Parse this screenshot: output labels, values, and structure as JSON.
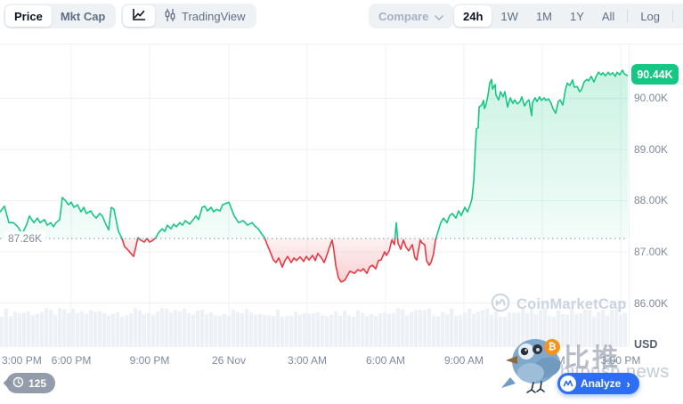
{
  "toolbar": {
    "price_label": "Price",
    "mktcap_label": "Mkt Cap",
    "tradingview_label": "TradingView",
    "compare_label": "Compare",
    "ranges": [
      "24h",
      "1W",
      "1M",
      "1Y",
      "All"
    ],
    "active_range": "24h",
    "log_label": "Log"
  },
  "chart_data": {
    "type": "area",
    "timeframe": "24h",
    "x_axis_labels": [
      "3:00 PM",
      "6:00 PM",
      "9:00 PM",
      "26 Nov",
      "3:00 AM",
      "6:00 AM",
      "9:00 AM",
      "12:00 PM",
      "3:00 PM"
    ],
    "y_axis": {
      "labels": [
        "90.00K",
        "89.00K",
        "88.00K",
        "87.00K",
        "86.00K"
      ],
      "values_k": [
        90,
        89,
        88,
        87,
        86
      ],
      "unit_label": "USD"
    },
    "ylim_k": [
      85.1,
      91.1
    ],
    "baseline": {
      "label": "87.26K",
      "value_k": 87.26
    },
    "last_price": {
      "label": "90.44K",
      "value_k": 90.44
    },
    "colors": {
      "up": "#16c784",
      "down": "#ea3943",
      "badge": "#16c784",
      "baseline_dot": "#98a2b6",
      "grid": "#eef1f6",
      "volume": "#edf0f4"
    },
    "series": {
      "name": "Price",
      "unit": "K USD",
      "points": [
        [
          0,
          87.78
        ],
        [
          5,
          87.89
        ],
        [
          10,
          87.57
        ],
        [
          15,
          87.57
        ],
        [
          20,
          87.49
        ],
        [
          25,
          87.35
        ],
        [
          30,
          87.54
        ],
        [
          33,
          87.7
        ],
        [
          38,
          87.57
        ],
        [
          42,
          87.66
        ],
        [
          45,
          87.57
        ],
        [
          50,
          87.63
        ],
        [
          53,
          87.52
        ],
        [
          57,
          87.57
        ],
        [
          60,
          87.49
        ],
        [
          63,
          87.57
        ],
        [
          67,
          87.63
        ],
        [
          70,
          88.06
        ],
        [
          73,
          88.01
        ],
        [
          77,
          87.92
        ],
        [
          80,
          87.97
        ],
        [
          83,
          87.87
        ],
        [
          87,
          87.92
        ],
        [
          91,
          87.78
        ],
        [
          94,
          87.87
        ],
        [
          97,
          87.75
        ],
        [
          102,
          87.8
        ],
        [
          105,
          87.71
        ],
        [
          108,
          87.66
        ],
        [
          112,
          87.75
        ],
        [
          115,
          87.7
        ],
        [
          118,
          87.57
        ],
        [
          122,
          87.43
        ],
        [
          125,
          87.87
        ],
        [
          128,
          87.83
        ],
        [
          133,
          87.4
        ],
        [
          137,
          87.26
        ],
        [
          140,
          87.1
        ],
        [
          143,
          87.05
        ],
        [
          150,
          86.91
        ],
        [
          155,
          87.28
        ],
        [
          158,
          87.23
        ],
        [
          162,
          87.19
        ],
        [
          165,
          87.26
        ],
        [
          168,
          87.19
        ],
        [
          172,
          87.23
        ],
        [
          175,
          87.28
        ],
        [
          178,
          87.37
        ],
        [
          182,
          87.45
        ],
        [
          185,
          87.4
        ],
        [
          188,
          87.52
        ],
        [
          192,
          87.45
        ],
        [
          195,
          87.54
        ],
        [
          198,
          87.49
        ],
        [
          202,
          87.57
        ],
        [
          205,
          87.52
        ],
        [
          208,
          87.61
        ],
        [
          213,
          87.54
        ],
        [
          217,
          87.63
        ],
        [
          220,
          87.7
        ],
        [
          223,
          87.63
        ],
        [
          227,
          87.87
        ],
        [
          230,
          87.89
        ],
        [
          233,
          87.8
        ],
        [
          237,
          87.87
        ],
        [
          240,
          87.78
        ],
        [
          243,
          87.83
        ],
        [
          247,
          87.8
        ],
        [
          250,
          87.92
        ],
        [
          257,
          87.97
        ],
        [
          263,
          87.7
        ],
        [
          268,
          87.57
        ],
        [
          273,
          87.61
        ],
        [
          278,
          87.52
        ],
        [
          283,
          87.57
        ],
        [
          287,
          87.49
        ],
        [
          290,
          87.45
        ],
        [
          293,
          87.37
        ],
        [
          297,
          87.28
        ],
        [
          300,
          87.14
        ],
        [
          303,
          87.02
        ],
        [
          307,
          86.84
        ],
        [
          310,
          86.79
        ],
        [
          313,
          86.88
        ],
        [
          317,
          86.7
        ],
        [
          320,
          86.83
        ],
        [
          323,
          86.91
        ],
        [
          327,
          86.79
        ],
        [
          330,
          86.88
        ],
        [
          333,
          86.83
        ],
        [
          337,
          86.9
        ],
        [
          341,
          86.81
        ],
        [
          344,
          86.91
        ],
        [
          347,
          86.84
        ],
        [
          351,
          86.93
        ],
        [
          354,
          86.83
        ],
        [
          357,
          86.97
        ],
        [
          361,
          86.88
        ],
        [
          364,
          86.79
        ],
        [
          367,
          86.93
        ],
        [
          370,
          87.09
        ],
        [
          373,
          87.23
        ],
        [
          375,
          87.02
        ],
        [
          377,
          86.74
        ],
        [
          380,
          86.5
        ],
        [
          383,
          86.41
        ],
        [
          387,
          86.44
        ],
        [
          390,
          86.53
        ],
        [
          393,
          86.62
        ],
        [
          398,
          86.58
        ],
        [
          402,
          86.65
        ],
        [
          405,
          86.62
        ],
        [
          408,
          86.67
        ],
        [
          412,
          86.58
        ],
        [
          415,
          86.7
        ],
        [
          418,
          86.74
        ],
        [
          422,
          86.67
        ],
        [
          425,
          86.83
        ],
        [
          428,
          86.84
        ],
        [
          432,
          87.0
        ],
        [
          434,
          86.93
        ],
        [
          437,
          87.02
        ],
        [
          440,
          87.23
        ],
        [
          443,
          87.14
        ],
        [
          445,
          87.57
        ],
        [
          447,
          87.17
        ],
        [
          450,
          87.05
        ],
        [
          453,
          87.23
        ],
        [
          456,
          87.09
        ],
        [
          459,
          87.02
        ],
        [
          463,
          87.14
        ],
        [
          466,
          86.88
        ],
        [
          468,
          86.84
        ],
        [
          472,
          87.23
        ],
        [
          474,
          87.17
        ],
        [
          477,
          87.14
        ],
        [
          479,
          86.83
        ],
        [
          482,
          86.74
        ],
        [
          484,
          86.79
        ],
        [
          487,
          86.97
        ],
        [
          489,
          87.23
        ],
        [
          492,
          87.4
        ],
        [
          495,
          87.57
        ],
        [
          498,
          87.66
        ],
        [
          502,
          87.57
        ],
        [
          505,
          87.71
        ],
        [
          508,
          87.75
        ],
        [
          512,
          87.66
        ],
        [
          515,
          87.8
        ],
        [
          518,
          87.71
        ],
        [
          522,
          87.87
        ],
        [
          525,
          87.78
        ],
        [
          528,
          87.92
        ],
        [
          530,
          88.04
        ],
        [
          532,
          88.39
        ],
        [
          533,
          88.74
        ],
        [
          534,
          89.09
        ],
        [
          535,
          89.4
        ],
        [
          537,
          89.43
        ],
        [
          538,
          89.83
        ],
        [
          541,
          89.87
        ],
        [
          543,
          89.96
        ],
        [
          544,
          89.8
        ],
        [
          546,
          89.89
        ],
        [
          548,
          90.06
        ],
        [
          550,
          90.3
        ],
        [
          552,
          90.37
        ],
        [
          553,
          90.18
        ],
        [
          556,
          90.27
        ],
        [
          557,
          90.06
        ],
        [
          560,
          89.97
        ],
        [
          562,
          90.13
        ],
        [
          565,
          90.03
        ],
        [
          567,
          90.13
        ],
        [
          570,
          89.83
        ],
        [
          573,
          90.01
        ],
        [
          576,
          89.9
        ],
        [
          578,
          89.97
        ],
        [
          581,
          89.89
        ],
        [
          584,
          89.94
        ],
        [
          586,
          90.03
        ],
        [
          589,
          89.85
        ],
        [
          592,
          89.94
        ],
        [
          594,
          89.97
        ],
        [
          597,
          89.66
        ],
        [
          598,
          89.92
        ],
        [
          601,
          90.01
        ],
        [
          603,
          89.94
        ],
        [
          606,
          90.03
        ],
        [
          608,
          89.96
        ],
        [
          611,
          90.01
        ],
        [
          613,
          89.96
        ],
        [
          616,
          89.99
        ],
        [
          619,
          89.9
        ],
        [
          621,
          89.8
        ],
        [
          624,
          89.71
        ],
        [
          627,
          89.94
        ],
        [
          629,
          89.97
        ],
        [
          632,
          89.87
        ],
        [
          635,
          90.17
        ],
        [
          637,
          90.3
        ],
        [
          640,
          90.25
        ],
        [
          643,
          90.36
        ],
        [
          645,
          90.22
        ],
        [
          648,
          90.23
        ],
        [
          651,
          90.13
        ],
        [
          653,
          90.17
        ],
        [
          656,
          90.32
        ],
        [
          659,
          90.37
        ],
        [
          661,
          90.34
        ],
        [
          664,
          90.43
        ],
        [
          667,
          90.32
        ],
        [
          669,
          90.41
        ],
        [
          672,
          90.51
        ],
        [
          675,
          90.46
        ],
        [
          677,
          90.5
        ],
        [
          680,
          90.44
        ],
        [
          683,
          90.51
        ],
        [
          685,
          90.46
        ],
        [
          688,
          90.5
        ],
        [
          691,
          90.43
        ],
        [
          693,
          90.51
        ],
        [
          696,
          90.46
        ],
        [
          699,
          90.55
        ],
        [
          701,
          90.48
        ],
        [
          705,
          90.44
        ]
      ]
    }
  },
  "footer": {
    "history_count": "125",
    "analyze_label": "Analyze",
    "analyze_chevron": "›"
  },
  "watermarks": {
    "coinmarketcap": "CoinMarketCap",
    "bitpush_cn": "比推",
    "bitpush_domain": "bitpush.news",
    "bitcoin_symbol": "₿"
  }
}
